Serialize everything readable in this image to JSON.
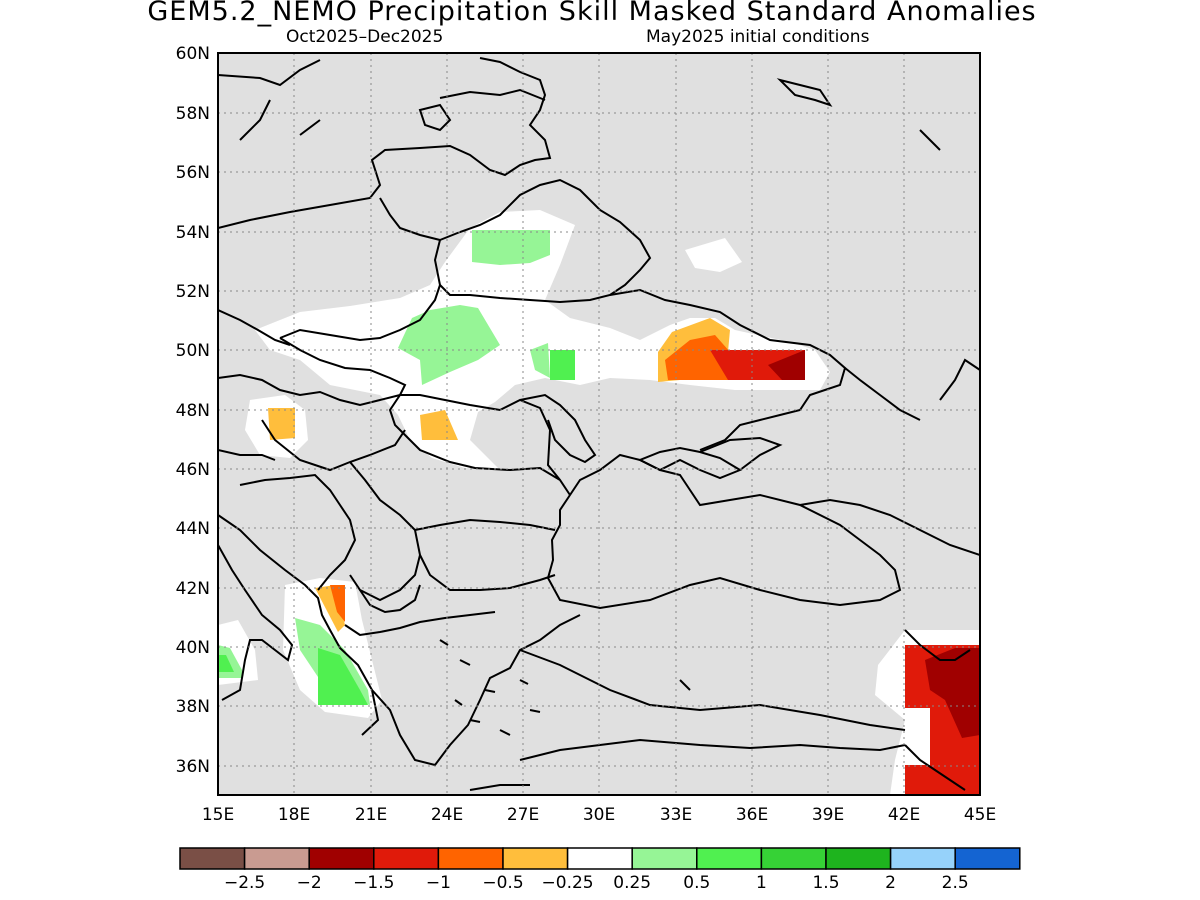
{
  "title": "GEM5.2_NEMO Precipitation Skill Masked Standard Anomalies",
  "subtitle_left": "Oct2025–Dec2025",
  "subtitle_right": "May2025 initial conditions",
  "map": {
    "lon_range": [
      15,
      45
    ],
    "lat_range": [
      35,
      60
    ],
    "lon_ticks": [
      "15E",
      "18E",
      "21E",
      "24E",
      "27E",
      "30E",
      "33E",
      "36E",
      "39E",
      "42E",
      "45E"
    ],
    "lat_ticks": [
      "60N",
      "58N",
      "56N",
      "54N",
      "52N",
      "50N",
      "48N",
      "46N",
      "44N",
      "42N",
      "40N",
      "38N",
      "36N"
    ],
    "grid": true,
    "mask_color": "#e0e0e0",
    "region": "Eastern Europe / Black Sea"
  },
  "colorbar": {
    "colors": [
      "#7a4f46",
      "#c99b91",
      "#a00000",
      "#e01a0a",
      "#ff6400",
      "#ffbe3c",
      "#ffffff",
      "#96f596",
      "#50f050",
      "#36d236",
      "#1eb41e",
      "#96d2fa",
      "#1464d2"
    ],
    "labels": [
      "−2.5",
      "−2",
      "−1.5",
      "−1",
      "−0.5",
      "−0.25",
      "0.25",
      "0.5",
      "1",
      "1.5",
      "2",
      "2.5"
    ]
  }
}
